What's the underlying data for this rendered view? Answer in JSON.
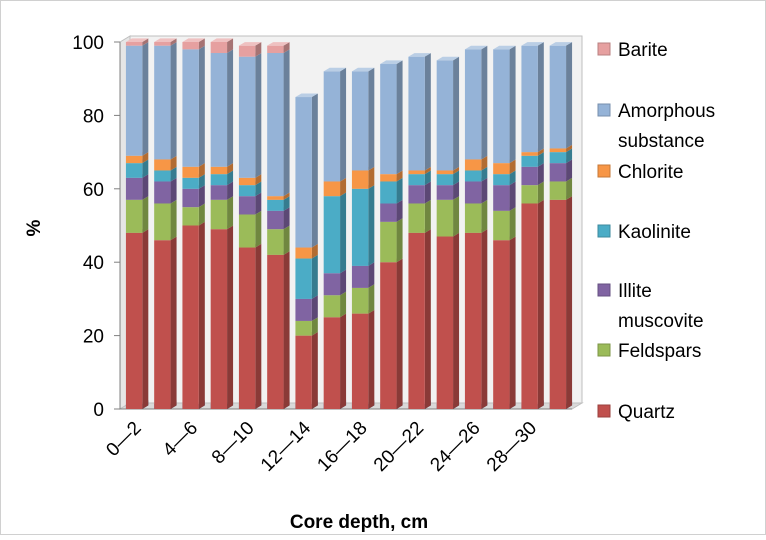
{
  "chart_data": {
    "type": "bar",
    "stacked": true,
    "three_d": true,
    "title": "",
    "xlabel": "Core depth, cm",
    "ylabel": "%",
    "ylim": [
      0,
      100
    ],
    "yticks": [
      0,
      20,
      40,
      60,
      80,
      100
    ],
    "grid": false,
    "legend_position": "right",
    "categories": [
      "0—2",
      "2—4",
      "4—6",
      "6—8",
      "8—10",
      "10—12",
      "12—14",
      "14—16",
      "16—18",
      "18—20",
      "20—22",
      "22—24",
      "24—26",
      "26—28",
      "28—30",
      "30—32"
    ],
    "category_labels_shown": [
      "0—2",
      "4—6",
      "8—10",
      "12—14",
      "16—18",
      "20—22",
      "24—26",
      "28—30"
    ],
    "series": [
      {
        "name": "Quartz",
        "color": "#c0504d",
        "values": [
          48,
          46,
          50,
          49,
          44,
          42,
          20,
          25,
          26,
          40,
          48,
          47,
          48,
          46,
          56,
          57
        ]
      },
      {
        "name": "Feldspars",
        "color": "#9bbb59",
        "values": [
          9,
          10,
          5,
          8,
          9,
          7,
          4,
          6,
          7,
          11,
          8,
          10,
          8,
          8,
          5,
          5
        ]
      },
      {
        "name": "Illite muscovite",
        "color": "#8064a2",
        "values": [
          6,
          6,
          5,
          4,
          5,
          5,
          6,
          6,
          6,
          5,
          5,
          4,
          6,
          7,
          5,
          5
        ]
      },
      {
        "name": "Kaolinite",
        "color": "#4bacc6",
        "values": [
          4,
          3,
          3,
          3,
          3,
          3,
          11,
          21,
          21,
          6,
          3,
          3,
          3,
          3,
          3,
          3
        ]
      },
      {
        "name": "Chlorite",
        "color": "#f79646",
        "values": [
          2,
          3,
          3,
          2,
          2,
          1,
          3,
          4,
          5,
          2,
          1,
          1,
          3,
          3,
          1,
          1
        ]
      },
      {
        "name": "Amorphous substance",
        "color": "#95b3d7",
        "values": [
          30,
          31,
          32,
          31,
          33,
          39,
          41,
          30,
          27,
          30,
          31,
          30,
          30,
          31,
          29,
          28
        ]
      },
      {
        "name": "Barite",
        "color": "#e6a0a0",
        "values": [
          1,
          1,
          2,
          3,
          3,
          2,
          0,
          0,
          0,
          0,
          0,
          0,
          0,
          0,
          0,
          0
        ]
      }
    ],
    "legend": [
      {
        "series": "Barite",
        "lines": [
          "Barite"
        ]
      },
      {
        "series": "Amorphous substance",
        "lines": [
          "Amorphous",
          "substance"
        ]
      },
      {
        "series": "Chlorite",
        "lines": [
          "Chlorite"
        ]
      },
      {
        "series": "Kaolinite",
        "lines": [
          "Kaolinite"
        ]
      },
      {
        "series": "Illite muscovite",
        "lines": [
          "Illite",
          "muscovite"
        ]
      },
      {
        "series": "Feldspars",
        "lines": [
          "Feldspars"
        ]
      },
      {
        "series": "Quartz",
        "lines": [
          "Quartz"
        ]
      }
    ],
    "colors": {
      "wall": "#f2f2f2",
      "floor": "#d9d9d9",
      "frame": "#bfbfbf",
      "base_block": "#4f81bd"
    }
  }
}
